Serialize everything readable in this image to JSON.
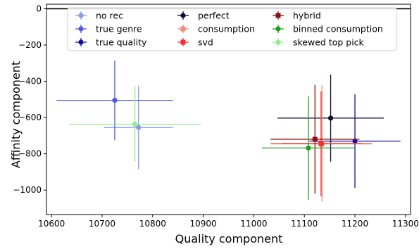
{
  "chart_data": {
    "type": "scatter",
    "title": "",
    "xlabel": "Quality component",
    "ylabel": "Affinity component",
    "xlim": [
      10590,
      11310
    ],
    "ylim": [
      -1135,
      25
    ],
    "xticks": [
      10600,
      10700,
      10800,
      10900,
      11000,
      11100,
      11200,
      11300
    ],
    "yticks": [
      0,
      -200,
      -400,
      -600,
      -800,
      -1000
    ],
    "grid": false,
    "legend": {
      "placement": "top",
      "columns": 3
    },
    "series": [
      {
        "name": "no rec",
        "color": "#8c9ae8",
        "marker": "circle",
        "x": 10772,
        "y": -655,
        "xerr": 68,
        "yerr": 230
      },
      {
        "name": "true genre",
        "color": "#4a5ae0",
        "marker": "circle",
        "x": 10725,
        "y": -505,
        "xerr": 115,
        "yerr": 220
      },
      {
        "name": "true quality",
        "color": "#1010a0",
        "marker": "circle",
        "x": 11200,
        "y": -730,
        "xerr": 90,
        "yerr": 258
      },
      {
        "name": "perfect",
        "color": "#0b0b35",
        "marker": "circle",
        "x": 11152,
        "y": -603,
        "xerr": 105,
        "yerr": 240
      },
      {
        "name": "consumption",
        "color": "#f08a7f",
        "marker": "square",
        "x": 11135,
        "y": -743,
        "xerr": 80,
        "yerr": 320
      },
      {
        "name": "svd",
        "color": "#f03030",
        "marker": "square",
        "x": 11133,
        "y": -745,
        "xerr": 100,
        "yerr": 290
      },
      {
        "name": "hybrid",
        "color": "#8b1010",
        "marker": "square",
        "x": 11121,
        "y": -720,
        "xerr": 88,
        "yerr": 300
      },
      {
        "name": "binned consumption",
        "color": "#20a020",
        "marker": "circle",
        "x": 11108,
        "y": -768,
        "xerr": 92,
        "yerr": 285
      },
      {
        "name": "skewed top pick",
        "color": "#90ee90",
        "marker": "circle",
        "x": 10765,
        "y": -637,
        "xerr": 130,
        "yerr": 205
      }
    ]
  }
}
